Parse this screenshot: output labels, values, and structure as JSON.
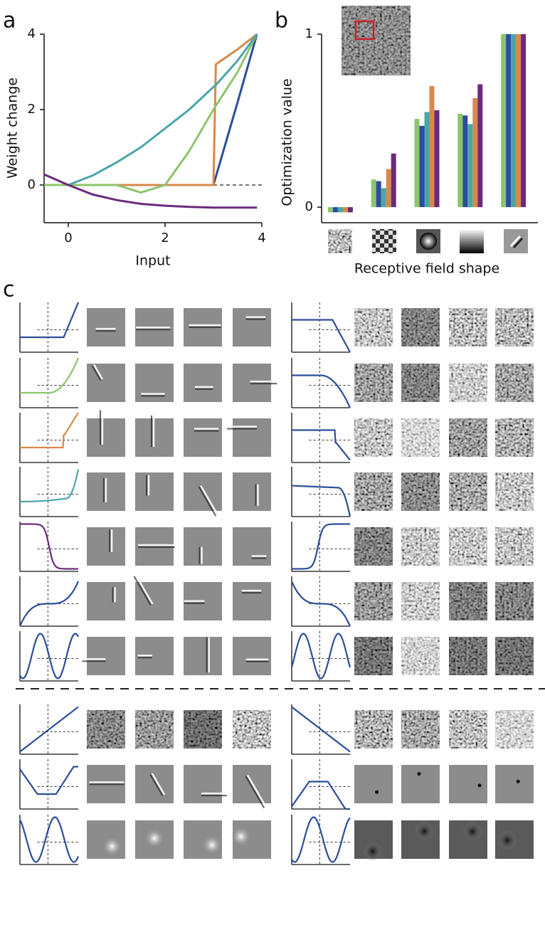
{
  "chart_data": [
    {
      "type": "line",
      "panel_label": "a",
      "x_label": "Input",
      "y_label": "Weight change",
      "x": [
        -0.5,
        0,
        0.5,
        1,
        1.5,
        2,
        2.5,
        3,
        3.05,
        3.5,
        3.9
      ],
      "series": [
        {
          "color": "#2b4d9b",
          "values": [
            0,
            0,
            0,
            0,
            0,
            0,
            0,
            0,
            0.22,
            2.2,
            4
          ]
        },
        {
          "color": "#d68a4a",
          "values": [
            0,
            0,
            0,
            0,
            0,
            0,
            0,
            0,
            3.2,
            3.6,
            4
          ]
        },
        {
          "color": "#8dc46c",
          "values": [
            0,
            0,
            0,
            0,
            -0.2,
            0,
            0.9,
            2.0,
            2.1,
            3.0,
            4
          ]
        },
        {
          "color": "#4ba5aa",
          "values": [
            null,
            0,
            0.25,
            0.6,
            1.0,
            1.5,
            2.0,
            2.6,
            2.65,
            3.3,
            4
          ]
        },
        {
          "color": "#6b2a7c",
          "values": [
            0.28,
            0,
            -0.25,
            -0.4,
            -0.5,
            -0.55,
            -0.58,
            -0.6,
            -0.6,
            -0.6,
            -0.6
          ]
        }
      ],
      "xlim": [
        -0.5,
        4
      ],
      "ylim": [
        -1,
        4
      ],
      "xticks": [
        0,
        2,
        4
      ],
      "yticks": [
        0,
        2,
        4
      ]
    },
    {
      "type": "bar",
      "panel_label": "b",
      "x_label": "Receptive field shape",
      "y_label": "Optimization value",
      "categories": [
        null,
        null,
        null,
        null,
        null
      ],
      "series": [
        {
          "color": "#8dc46c",
          "values": [
            -0.03,
            0.16,
            0.51,
            0.54,
            1
          ]
        },
        {
          "color": "#2b4d9b",
          "values": [
            -0.03,
            0.15,
            0.47,
            0.53,
            1
          ]
        },
        {
          "color": "#4ba5aa",
          "values": [
            -0.03,
            0.11,
            0.55,
            0.48,
            1
          ]
        },
        {
          "color": "#d68a4a",
          "values": [
            -0.03,
            0.22,
            0.7,
            0.63,
            1
          ]
        },
        {
          "color": "#6b2a7c",
          "values": [
            -0.03,
            0.31,
            0.56,
            0.71,
            1
          ]
        }
      ],
      "ylim": [
        -0.09,
        1
      ],
      "yticks": [
        0,
        1
      ]
    }
  ],
  "panel_c_label": "c"
}
